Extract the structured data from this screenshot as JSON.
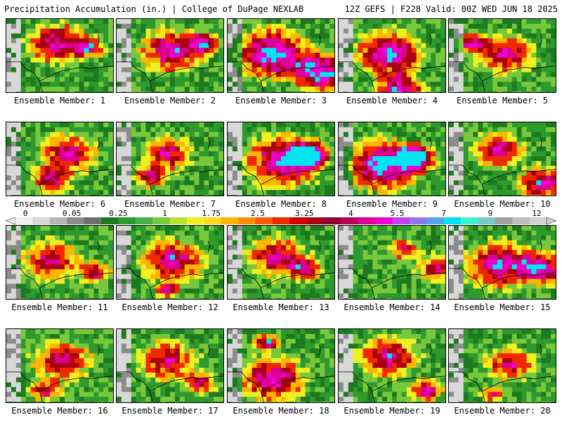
{
  "header": {
    "title_left": "Precipitation Accumulation (in.) | College of DuPage NEXLAB",
    "title_right": "12Z GEFS | F228 Valid: 00Z WED JUN 18 2025"
  },
  "members": [
    {
      "label": "Ensemble Member: 1"
    },
    {
      "label": "Ensemble Member: 2"
    },
    {
      "label": "Ensemble Member: 3"
    },
    {
      "label": "Ensemble Member: 4"
    },
    {
      "label": "Ensemble Member: 5"
    },
    {
      "label": "Ensemble Member: 6"
    },
    {
      "label": "Ensemble Member: 7"
    },
    {
      "label": "Ensemble Member: 8"
    },
    {
      "label": "Ensemble Member: 9"
    },
    {
      "label": "Ensemble Member: 10"
    },
    {
      "label": "Ensemble Member: 11"
    },
    {
      "label": "Ensemble Member: 12"
    },
    {
      "label": "Ensemble Member: 13"
    },
    {
      "label": "Ensemble Member: 14"
    },
    {
      "label": "Ensemble Member: 15"
    },
    {
      "label": "Ensemble Member: 16"
    },
    {
      "label": "Ensemble Member: 17"
    },
    {
      "label": "Ensemble Member: 18"
    },
    {
      "label": "Ensemble Member: 19"
    },
    {
      "label": "Ensemble Member: 20"
    }
  ],
  "colorbar": {
    "tick_labels": [
      "0",
      "0.05",
      "0.25",
      "1",
      "1.75",
      "2.5",
      "3.25",
      "4",
      "5.5",
      "7",
      "9",
      "12"
    ],
    "colors": [
      "#f0f0f0",
      "#d8d8d8",
      "#b4b4b4",
      "#8c8c8c",
      "#6e6e6e",
      "#1e7a1e",
      "#2e9a2e",
      "#48b048",
      "#78c83c",
      "#b8e030",
      "#f0f020",
      "#ffd820",
      "#ffb400",
      "#ff8c00",
      "#ff5a00",
      "#f02800",
      "#d20000",
      "#aa0014",
      "#8c0032",
      "#b4005a",
      "#dc0096",
      "#f000d2",
      "#c040f0",
      "#8c78f0",
      "#5aa0f0",
      "#00e6f0",
      "#40f0d2",
      "#78c8c8",
      "#a0a0a0",
      "#bebebe",
      "#d2d2d2"
    ]
  }
}
